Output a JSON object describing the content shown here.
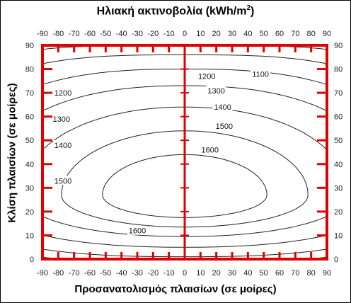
{
  "chart_data": {
    "type": "contour",
    "title": "Ηλιακή ακτινοβολία (kWh/m²)",
    "title_main": "Ηλιακή ακτινοβολία (kWh/m",
    "title_sup": "2",
    "title_end": ")",
    "xlabel": "Προσανατολισμός πλαισίων  (σε μοίρες)",
    "ylabel": "Κλίση πλαισίων  (σε μοίρες)",
    "xlim": [
      -90,
      90
    ],
    "ylim": [
      0,
      90
    ],
    "x_ticks": [
      "-90",
      "-80",
      "-70",
      "-60",
      "-50",
      "-40",
      "-30",
      "-20",
      "-10",
      "0",
      "10",
      "20",
      "30",
      "40",
      "50",
      "60",
      "70",
      "80",
      "90"
    ],
    "y_ticks": [
      "0",
      "10",
      "20",
      "30",
      "40",
      "50",
      "60",
      "70",
      "80",
      "90"
    ],
    "contour_levels": [
      1100,
      1200,
      1300,
      1400,
      1500,
      1600
    ],
    "contour_labels": [
      {
        "text": "1100",
        "x": 48,
        "y": 78
      },
      {
        "text": "1200",
        "x": 14,
        "y": 77
      },
      {
        "text": "1300",
        "x": 20,
        "y": 71
      },
      {
        "text": "1400",
        "x": 24,
        "y": 64
      },
      {
        "text": "1500",
        "x": 25,
        "y": 56
      },
      {
        "text": "1600",
        "x": 16,
        "y": 46
      },
      {
        "text": "1200",
        "x": -77,
        "y": 70
      },
      {
        "text": "1300",
        "x": -78,
        "y": 59
      },
      {
        "text": "1400",
        "x": -77,
        "y": 48
      },
      {
        "text": "1500",
        "x": -77,
        "y": 33
      },
      {
        "text": "1600",
        "x": -30,
        "y": 12
      }
    ],
    "colors": {
      "overlay": "#e00000",
      "contour": "#222222"
    }
  }
}
